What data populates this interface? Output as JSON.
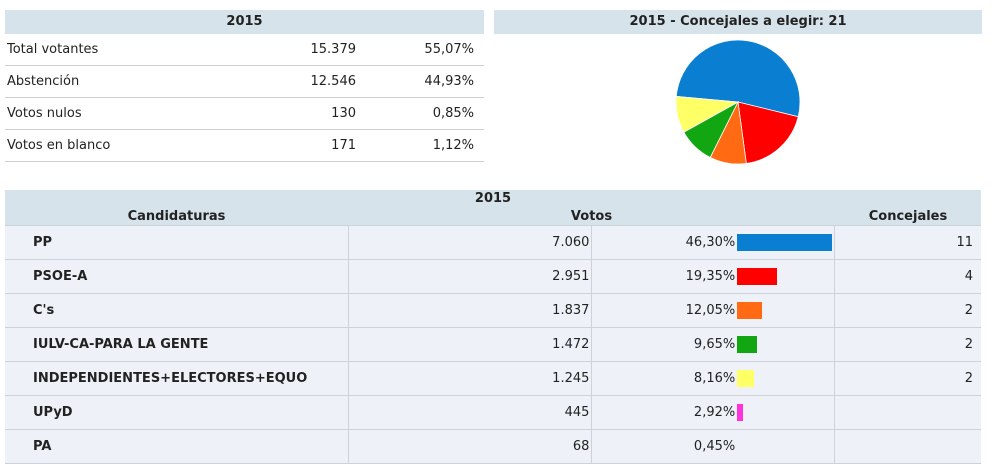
{
  "summary": {
    "title": "2015",
    "rows": [
      {
        "label": "Total votantes",
        "value": "15.379",
        "pct": "55,07%"
      },
      {
        "label": "Abstención",
        "value": "12.546",
        "pct": "44,93%"
      },
      {
        "label": "Votos nulos",
        "value": "130",
        "pct": "0,85%"
      },
      {
        "label": "Votos en blanco",
        "value": "171",
        "pct": "1,12%"
      }
    ]
  },
  "pie": {
    "title": "2015 - Concejales a elegir: 21"
  },
  "results": {
    "title": "2015",
    "headers": {
      "candidaturas": "Candidaturas",
      "votos": "Votos",
      "concejales": "Concejales"
    },
    "rows": [
      {
        "name": "PP",
        "votes": "7.060",
        "pct": "46,30%",
        "share": 46.3,
        "color": "#0a7fd1",
        "seats": "11"
      },
      {
        "name": "PSOE-A",
        "votes": "2.951",
        "pct": "19,35%",
        "share": 19.35,
        "color": "#ff0000",
        "seats": "4"
      },
      {
        "name": "C's",
        "votes": "1.837",
        "pct": "12,05%",
        "share": 12.05,
        "color": "#ff6a13",
        "seats": "2"
      },
      {
        "name": "IULV-CA-PARA LA GENTE",
        "votes": "1.472",
        "pct": "9,65%",
        "share": 9.65,
        "color": "#12a712",
        "seats": "2"
      },
      {
        "name": "INDEPENDIENTES+ELECTORES+EQUO",
        "votes": "1.245",
        "pct": "8,16%",
        "share": 8.16,
        "color": "#ffff66",
        "seats": "2"
      },
      {
        "name": "UPyD",
        "votes": "445",
        "pct": "2,92%",
        "share": 2.92,
        "color": "#ff33dd",
        "seats": ""
      },
      {
        "name": "PA",
        "votes": "68",
        "pct": "0,45%",
        "share": 0.45,
        "color": "#cccccc",
        "seats": ""
      }
    ]
  }
}
